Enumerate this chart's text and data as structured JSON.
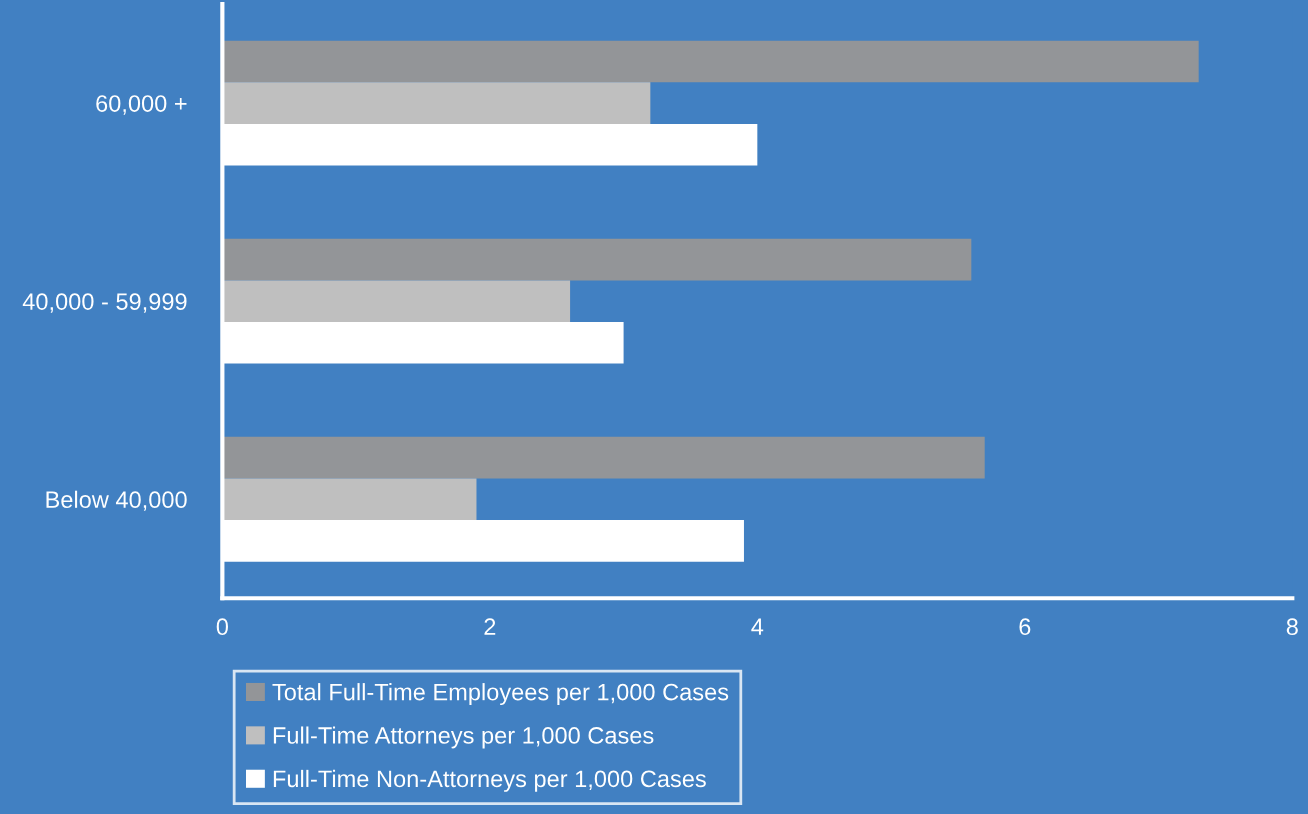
{
  "chart_data": {
    "type": "bar",
    "orientation": "horizontal",
    "categories": [
      "60,000 +",
      "40,000 - 59,999",
      "Below 40,000"
    ],
    "series": [
      {
        "name": "Total Full-Time Employees per 1,000 Cases",
        "color": "#939598",
        "values": [
          7.3,
          5.6,
          5.7
        ]
      },
      {
        "name": "Full-Time Attorneys per 1,000 Cases",
        "color": "#bfbfbf",
        "values": [
          3.2,
          2.6,
          1.9
        ]
      },
      {
        "name": "Full-Time Non-Attorneys per 1,000 Cases",
        "color": "#ffffff",
        "values": [
          4.0,
          3.0,
          3.9
        ]
      }
    ],
    "xlim": [
      0,
      8
    ],
    "xticks": [
      0,
      2,
      4,
      6,
      8
    ],
    "grid": false,
    "legend": "bottom left"
  }
}
